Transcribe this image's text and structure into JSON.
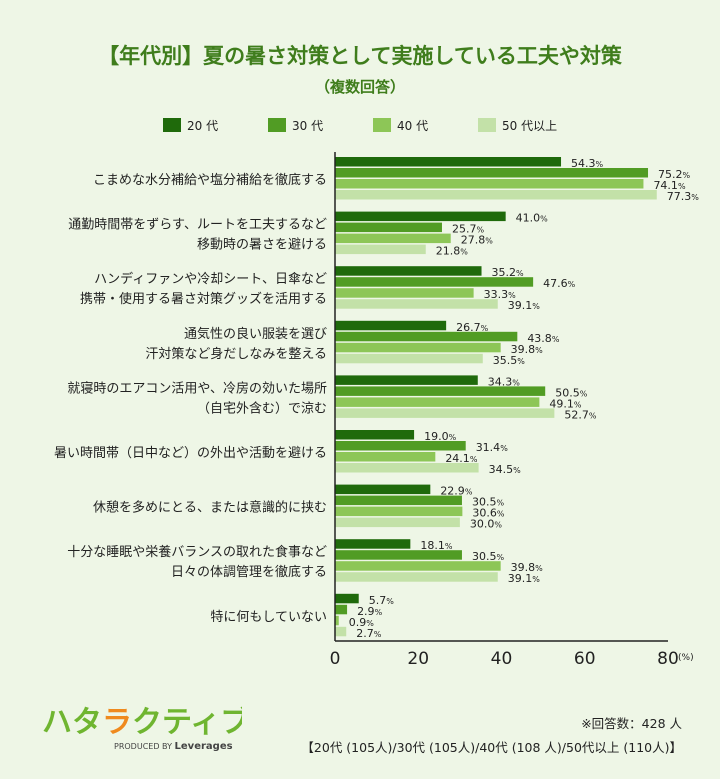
{
  "chart_data": {
    "type": "bar",
    "orientation": "horizontal",
    "title": "【年代別】夏の暑さ対策として実施している工夫や対策",
    "subtitle": "（複数回答）",
    "categories": [
      [
        "こまめな水分補給や塩分補給を徹底する"
      ],
      [
        "通勤時間帯をずらす、ルートを工夫するなど",
        "移動時の暑さを避ける"
      ],
      [
        "ハンディファンや冷却シート、日傘など",
        "携帯・使用する暑さ対策グッズを活用する"
      ],
      [
        "通気性の良い服装を選び",
        "汗対策など身だしなみを整える"
      ],
      [
        "就寝時のエアコン活用や、冷房の効いた場所",
        "（自宅外含む）で涼む"
      ],
      [
        "暑い時間帯（日中など）の外出や活動を避ける"
      ],
      [
        "休憩を多めにとる、または意識的に挟む"
      ],
      [
        "十分な睡眠や栄養バランスの取れた食事など",
        "日々の体調管理を徹底する"
      ],
      [
        "特に何もしていない"
      ]
    ],
    "series": [
      {
        "name": "20 代",
        "color": "#1f6a0b",
        "values": [
          54.3,
          41.0,
          35.2,
          26.7,
          34.3,
          19.0,
          22.9,
          18.1,
          5.7
        ]
      },
      {
        "name": "30 代",
        "color": "#519c24",
        "values": [
          75.2,
          25.7,
          47.6,
          43.8,
          50.5,
          31.4,
          30.5,
          30.5,
          2.9
        ]
      },
      {
        "name": "40 代",
        "color": "#8dc657",
        "values": [
          74.1,
          27.8,
          33.3,
          39.8,
          49.1,
          24.1,
          30.6,
          39.8,
          0.9
        ]
      },
      {
        "name": "50 代以上",
        "color": "#c3e1a8",
        "values": [
          77.3,
          21.8,
          39.1,
          35.5,
          52.7,
          34.5,
          30.0,
          39.1,
          2.7
        ]
      }
    ],
    "xlim": [
      0,
      80
    ],
    "xticks": [
      "0",
      "20",
      "40",
      "60",
      "80"
    ],
    "xunit": "(%)",
    "value_suffix": "%",
    "grid": false,
    "legend": "top"
  },
  "footer": {
    "count": "※回答数：428 人",
    "breakdown": "【20代 (105人)/30代 (105人)/40代 (108 人)/50代以上 (110人)】"
  },
  "logo": {
    "text": "ハタラクティブ",
    "produced": "PRODUCED BY Leverages"
  }
}
